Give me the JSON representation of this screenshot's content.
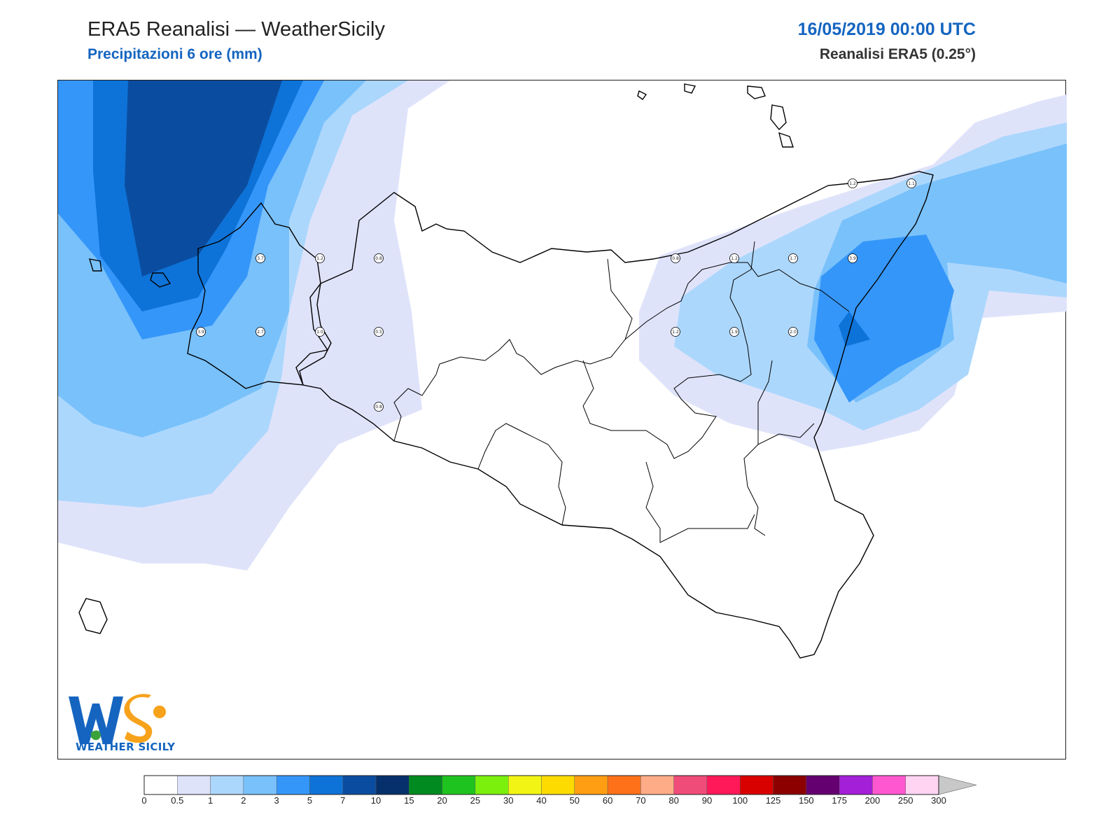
{
  "header": {
    "title": "ERA5 Reanalisi — WeatherSicily",
    "subtitle": "Precipitazioni 6 ore (mm)",
    "datetime": "16/05/2019 00:00 UTC",
    "source": "Reanalisi ERA5 (0.25°)"
  },
  "logo": {
    "text": "WEATHER SICILY",
    "letters": "WS"
  },
  "colors": {
    "accent": "#1565c0",
    "coastline": "#000000"
  },
  "legend": {
    "ticks": [
      "0",
      "0.5",
      "1",
      "2",
      "3",
      "5",
      "7",
      "10",
      "15",
      "20",
      "25",
      "30",
      "40",
      "50",
      "60",
      "70",
      "80",
      "90",
      "100",
      "125",
      "150",
      "175",
      "200",
      "250",
      "300"
    ],
    "colors": [
      "#ffffff",
      "#dfe3fa",
      "#acd7fc",
      "#79c1fb",
      "#3596f9",
      "#0e73d8",
      "#0a4da0",
      "#05306b",
      "#008a1f",
      "#1fc31f",
      "#7bf00c",
      "#f2f514",
      "#fedb00",
      "#ff9e12",
      "#ff7118",
      "#fdac87",
      "#ef4c7a",
      "#ff1959",
      "#d90000",
      "#8c0000",
      "#650070",
      "#a31fd8",
      "#ff57cf",
      "#ffd3f2"
    ],
    "extend_color": "#c8c8c8"
  },
  "stations": [
    {
      "label": "3.7"
    },
    {
      "label": "1.2"
    },
    {
      "label": "0.8"
    },
    {
      "label": "3.9"
    },
    {
      "label": "2.7"
    },
    {
      "label": "1.0"
    },
    {
      "label": "0.5"
    },
    {
      "label": "0.8"
    },
    {
      "label": "1.2"
    },
    {
      "label": "1.1"
    },
    {
      "label": "0.8"
    },
    {
      "label": "1.2"
    },
    {
      "label": "1.7"
    },
    {
      "label": "3.9"
    },
    {
      "label": "1.2"
    },
    {
      "label": "1.9"
    },
    {
      "label": "2.0"
    }
  ]
}
